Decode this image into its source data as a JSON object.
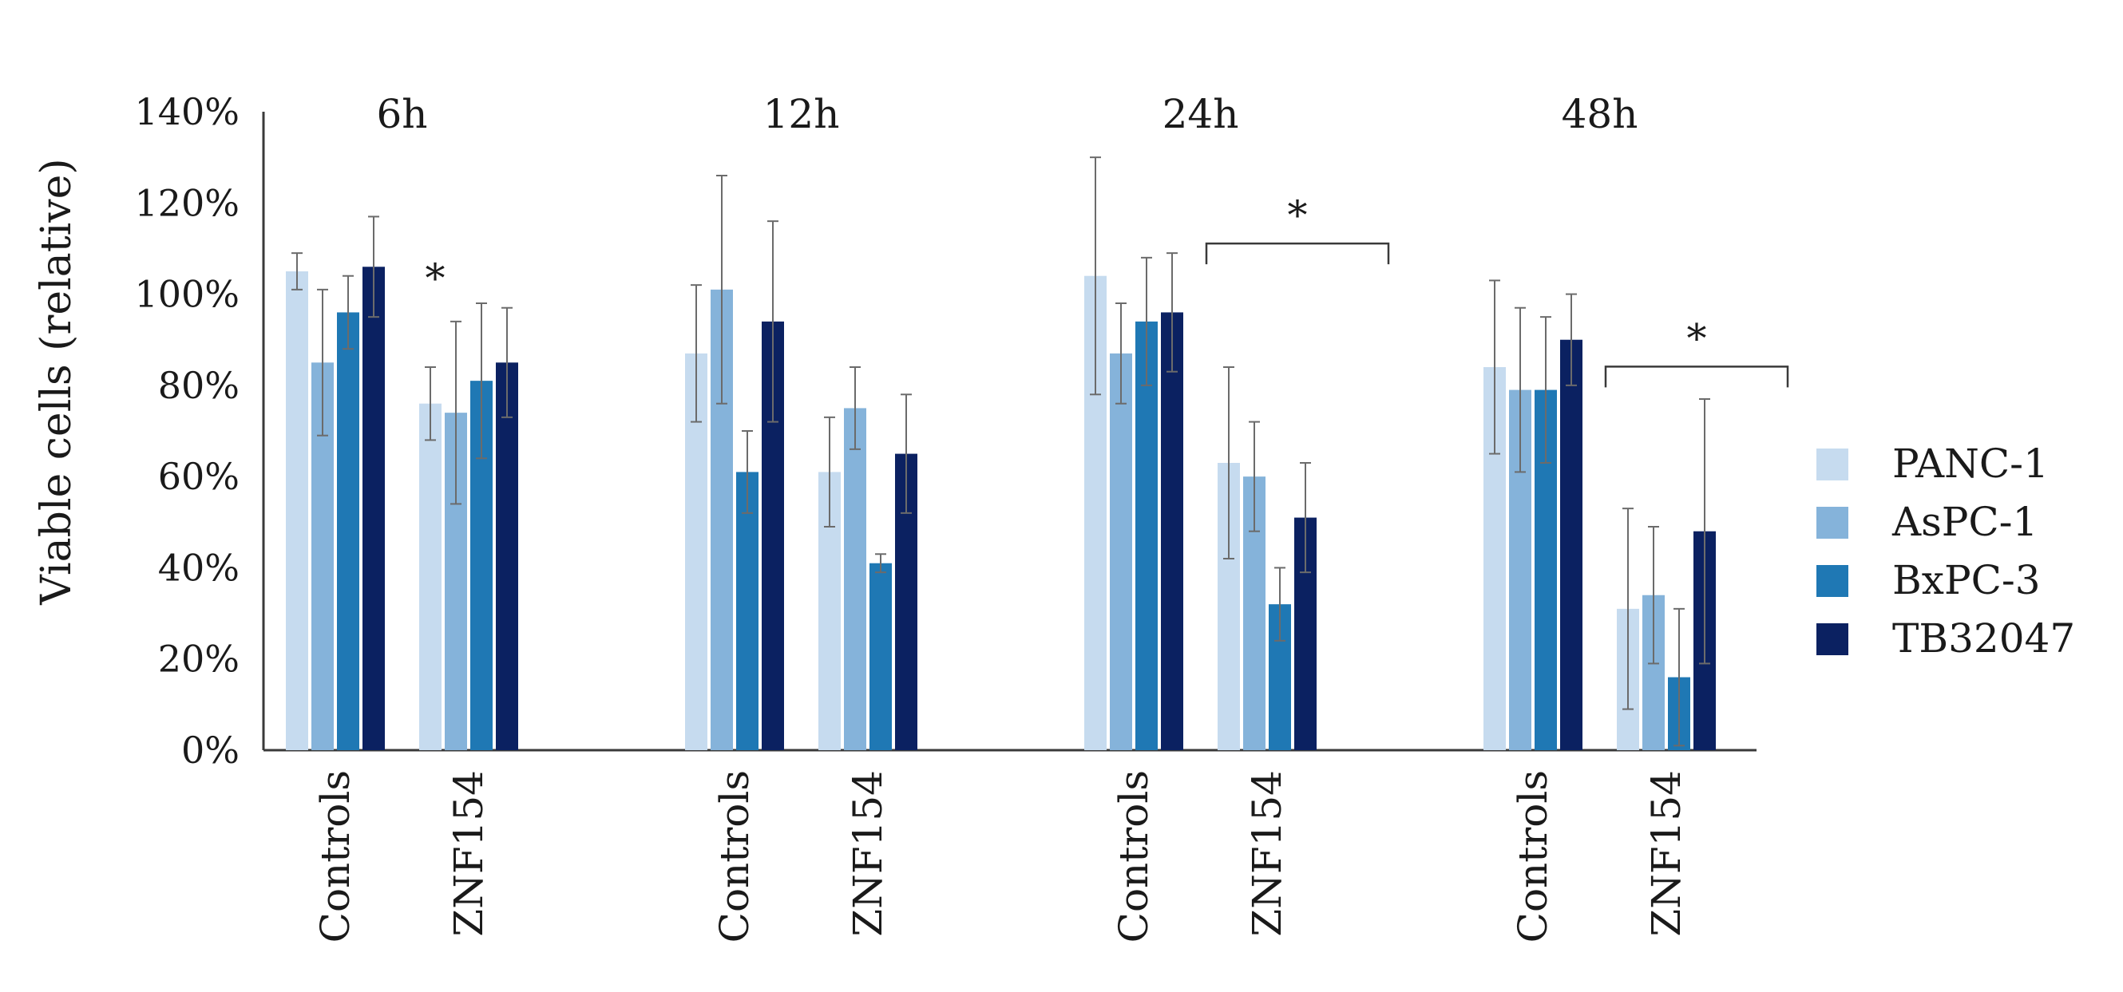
{
  "chart_data": {
    "type": "bar",
    "title": "",
    "xlabel": "",
    "ylabel": "Viable cells (relative)",
    "ylim": [
      0,
      140
    ],
    "yticks": [
      0,
      20,
      40,
      60,
      80,
      100,
      120,
      140
    ],
    "ytick_labels": [
      "0%",
      "20%",
      "40%",
      "60%",
      "80%",
      "100%",
      "120%",
      "140%"
    ],
    "grid": false,
    "legend_position": "right",
    "timepoints": [
      "6h",
      "12h",
      "24h",
      "48h"
    ],
    "categories": [
      "Controls",
      "ZNF154"
    ],
    "series": [
      {
        "name": "PANC-1",
        "color": "#c6dbef"
      },
      {
        "name": "AsPC-1",
        "color": "#85b3da"
      },
      {
        "name": "BxPC-3",
        "color": "#1f78b4"
      },
      {
        "name": "TB32047",
        "color": "#0b2161"
      }
    ],
    "groups": [
      {
        "timepoint": "6h",
        "category": "Controls",
        "values": [
          105,
          85,
          96,
          106
        ],
        "errors": [
          4,
          16,
          8,
          11
        ]
      },
      {
        "timepoint": "6h",
        "category": "ZNF154",
        "values": [
          76,
          74,
          81,
          85
        ],
        "errors": [
          8,
          20,
          17,
          12
        ]
      },
      {
        "timepoint": "12h",
        "category": "Controls",
        "values": [
          87,
          101,
          61,
          94
        ],
        "errors": [
          15,
          25,
          9,
          22
        ]
      },
      {
        "timepoint": "12h",
        "category": "ZNF154",
        "values": [
          61,
          75,
          41,
          65
        ],
        "errors": [
          12,
          9,
          2,
          13
        ]
      },
      {
        "timepoint": "24h",
        "category": "Controls",
        "values": [
          104,
          87,
          94,
          96
        ],
        "errors": [
          26,
          11,
          14,
          13
        ]
      },
      {
        "timepoint": "24h",
        "category": "ZNF154",
        "values": [
          63,
          60,
          32,
          51
        ],
        "errors": [
          21,
          12,
          8,
          12
        ]
      },
      {
        "timepoint": "48h",
        "category": "Controls",
        "values": [
          84,
          79,
          79,
          90
        ],
        "errors": [
          19,
          18,
          16,
          10
        ]
      },
      {
        "timepoint": "48h",
        "category": "ZNF154",
        "values": [
          31,
          34,
          16,
          48
        ],
        "errors": [
          22,
          15,
          15,
          29
        ]
      }
    ],
    "annotations": [
      {
        "text": "*",
        "timepoint": "6h",
        "type": "star"
      },
      {
        "text": "*",
        "timepoint": "24h",
        "type": "bracket"
      },
      {
        "text": "*",
        "timepoint": "48h",
        "type": "bracket"
      }
    ]
  }
}
